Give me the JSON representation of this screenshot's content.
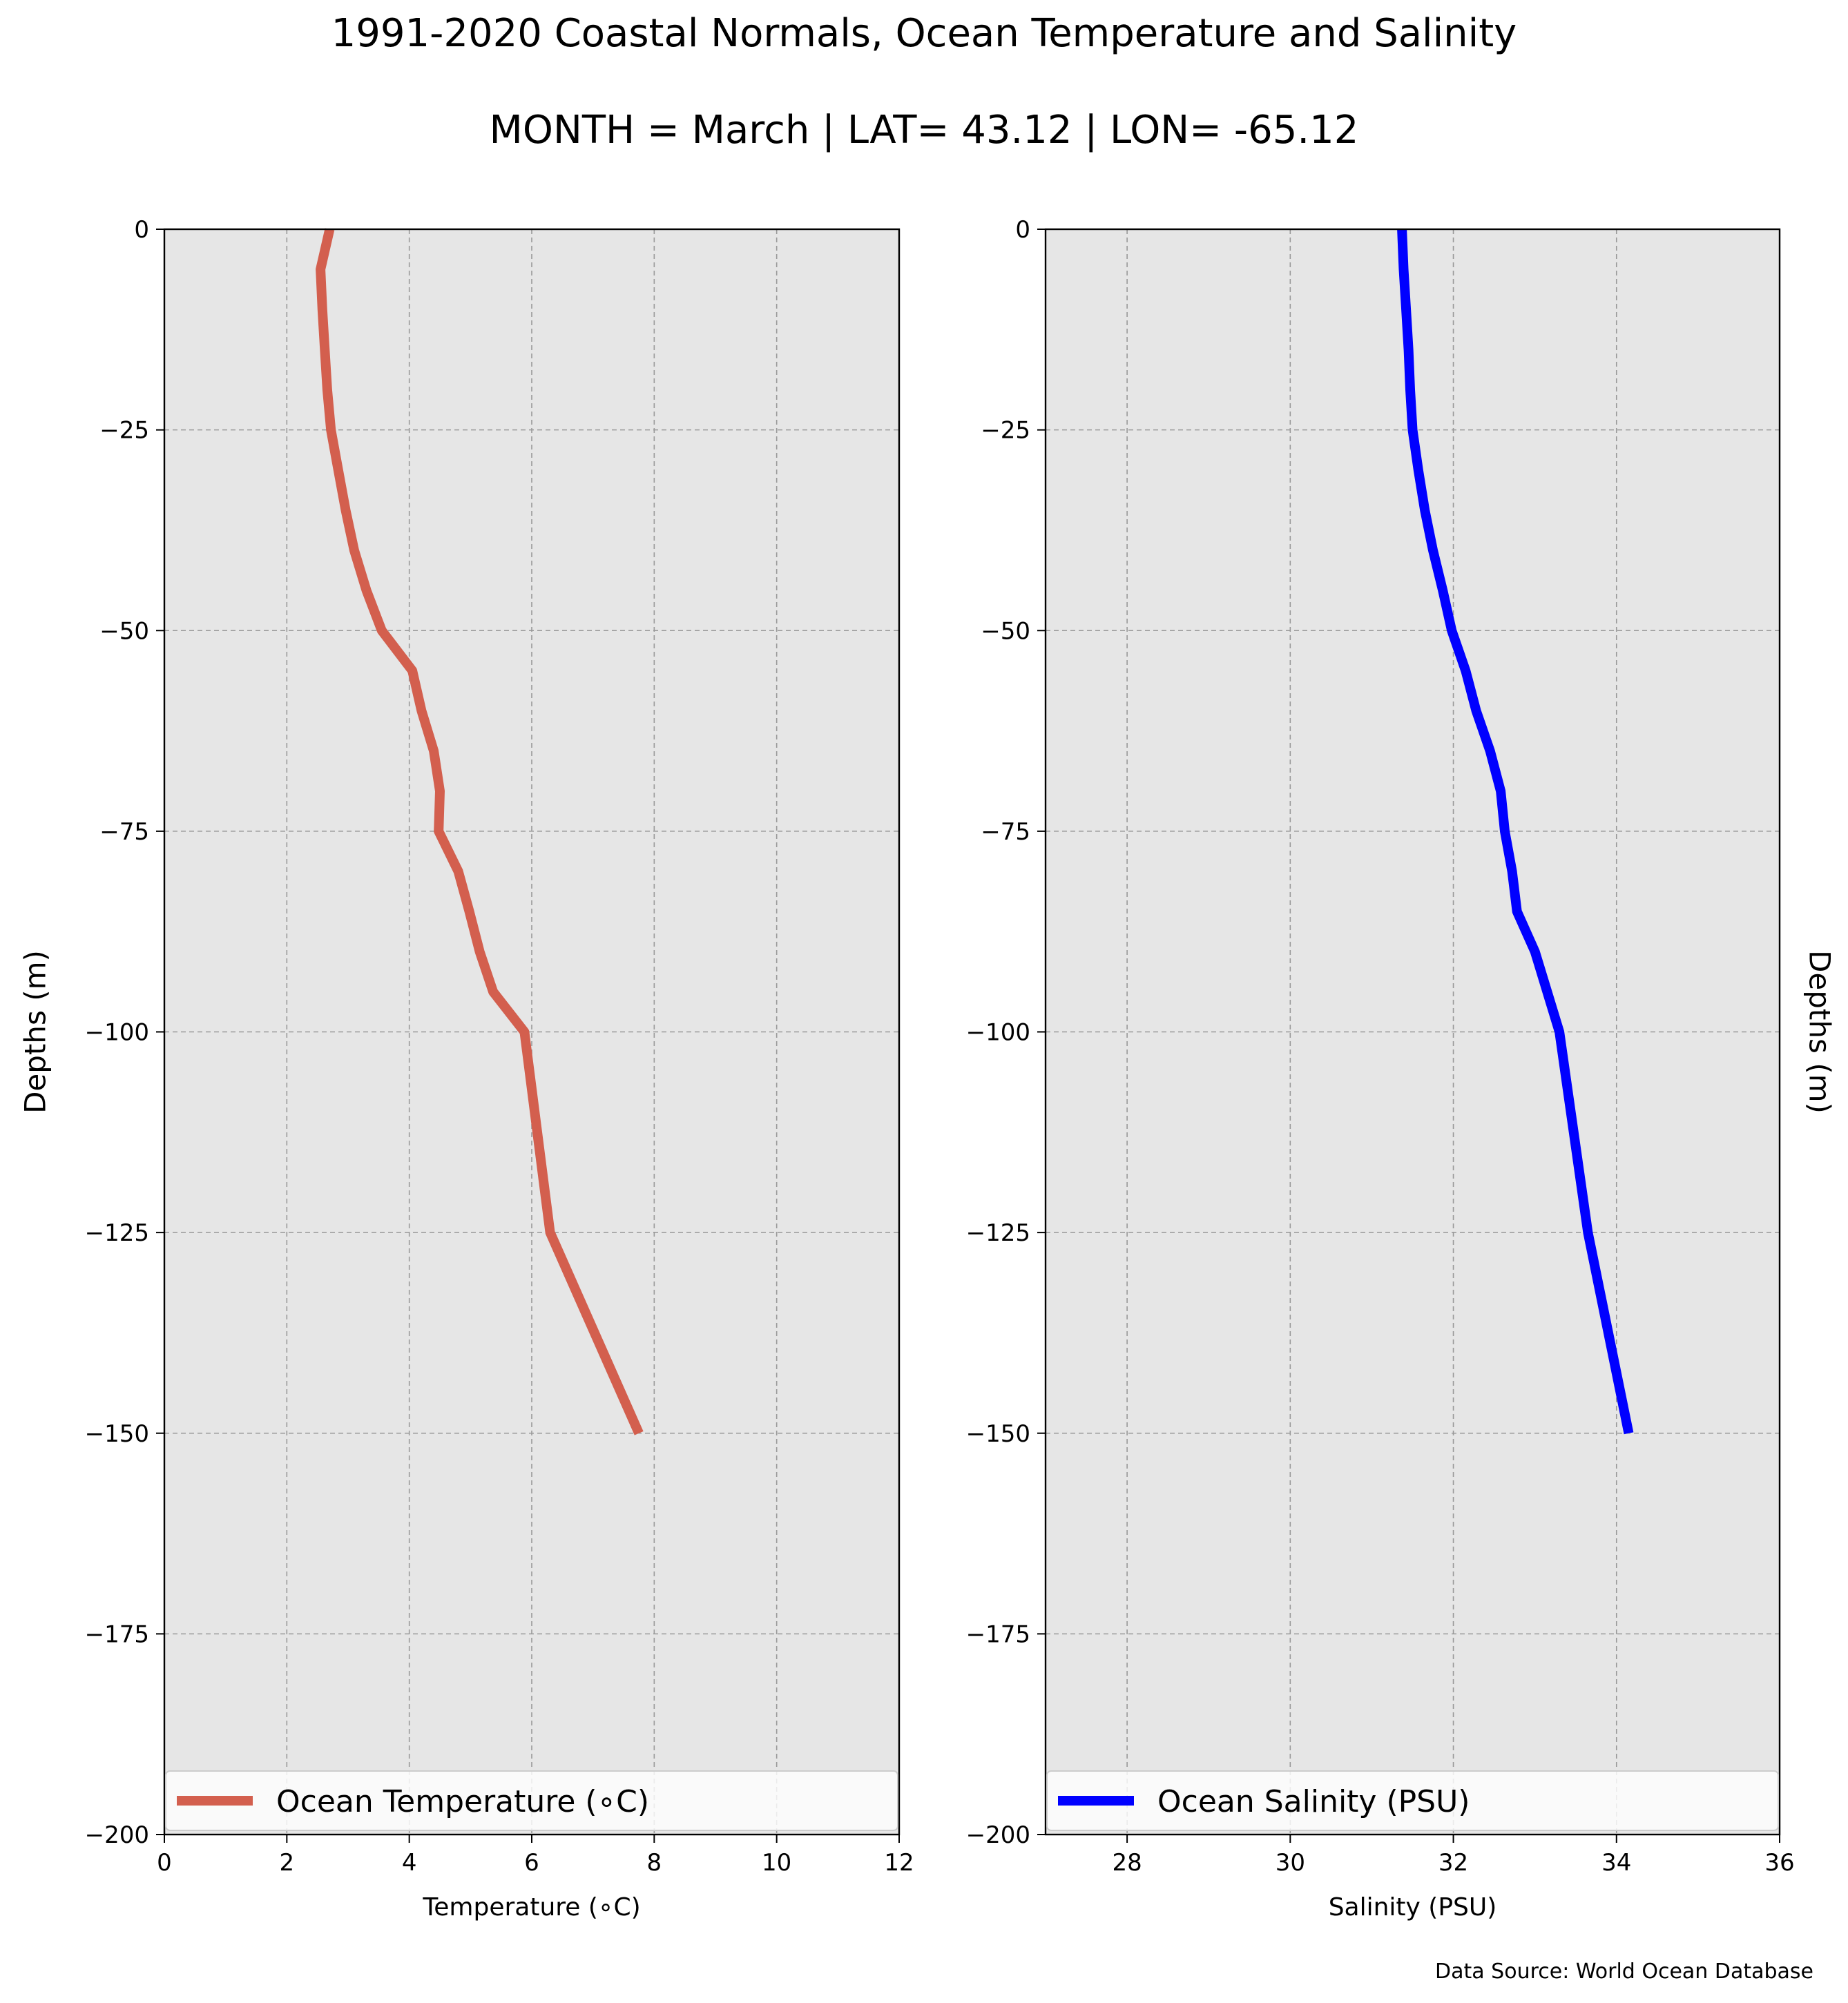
{
  "figure": {
    "title_line1": "1991-2020 Coastal Normals, Ocean Temperature and Salinity",
    "title_line2": "MONTH = March | LAT= 43.12 | LON= -65.12",
    "source": "Data Source: World Ocean Database",
    "background": "#e6e6e6",
    "grid_color": "#999999"
  },
  "chart_data": [
    {
      "type": "line",
      "orientation": "vertical-profile",
      "xlabel": "Temperature (∘C)",
      "ylabel": "Depths (m)",
      "ylabel_side": "left",
      "xlim": [
        0,
        12
      ],
      "ylim": [
        -200,
        0
      ],
      "xticks": [
        0,
        2,
        4,
        6,
        8,
        10,
        12
      ],
      "yticks": [
        0,
        -25,
        -50,
        -75,
        -100,
        -125,
        -150,
        -175,
        -200
      ],
      "grid": true,
      "legend_position": "bottom",
      "series": [
        {
          "name": "Ocean Temperature (∘C)",
          "color": "#d35f4e",
          "depth": [
            0,
            -5,
            -10,
            -15,
            -20,
            -25,
            -30,
            -35,
            -40,
            -45,
            -50,
            -55,
            -60,
            -65,
            -70,
            -75,
            -80,
            -85,
            -90,
            -95,
            -100,
            -125,
            -150
          ],
          "values": [
            2.7,
            2.55,
            2.58,
            2.62,
            2.66,
            2.72,
            2.84,
            2.96,
            3.1,
            3.3,
            3.55,
            4.05,
            4.2,
            4.4,
            4.5,
            4.48,
            4.8,
            4.98,
            5.15,
            5.37,
            5.88,
            6.3,
            7.75
          ]
        }
      ]
    },
    {
      "type": "line",
      "orientation": "vertical-profile",
      "xlabel": "Salinity (PSU)",
      "ylabel": "Depths (m)",
      "ylabel_side": "right",
      "xlim": [
        27,
        36
      ],
      "ylim": [
        -200,
        0
      ],
      "xticks": [
        28,
        30,
        32,
        34,
        36
      ],
      "yticks": [
        0,
        -25,
        -50,
        -75,
        -100,
        -125,
        -150,
        -175,
        -200
      ],
      "grid": true,
      "legend_position": "bottom",
      "series": [
        {
          "name": "Ocean Salinity (PSU)",
          "color": "#0000ff",
          "depth": [
            0,
            -5,
            -10,
            -15,
            -20,
            -25,
            -30,
            -35,
            -40,
            -45,
            -50,
            -55,
            -60,
            -65,
            -70,
            -75,
            -80,
            -85,
            -90,
            -95,
            -100,
            -125,
            -150
          ],
          "values": [
            31.37,
            31.39,
            31.42,
            31.45,
            31.47,
            31.5,
            31.57,
            31.65,
            31.75,
            31.87,
            31.98,
            32.15,
            32.28,
            32.45,
            32.58,
            32.63,
            32.72,
            32.78,
            33.0,
            33.15,
            33.3,
            33.65,
            34.15
          ]
        }
      ]
    }
  ]
}
